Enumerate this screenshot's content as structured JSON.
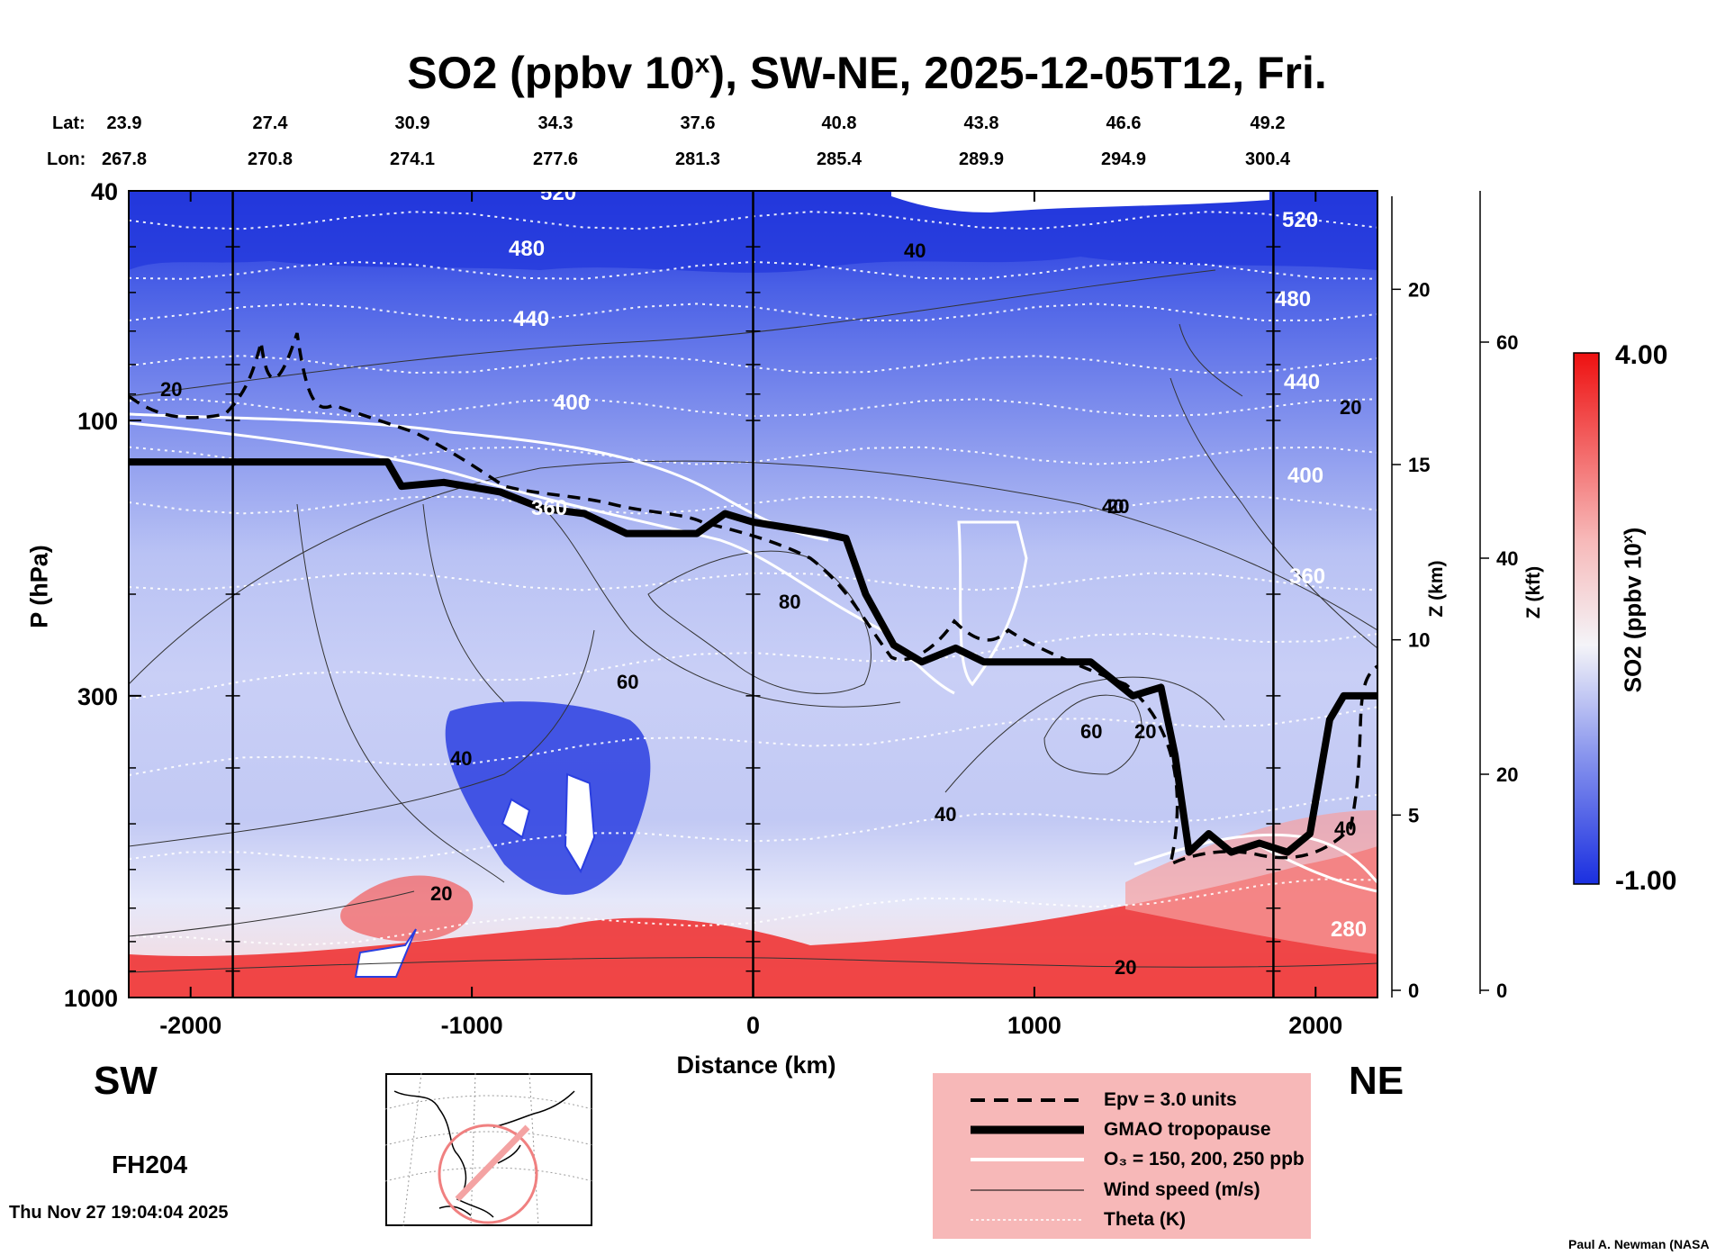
{
  "title": {
    "text": "SO2 (ppbv 10",
    "sup": "x",
    "rest": "), SW-NE, 2025-12-05T12, Fri."
  },
  "lat_label": "Lat:",
  "lon_label": "Lon:",
  "lats": [
    "23.9",
    "27.4",
    "30.9",
    "34.3",
    "37.6",
    "40.8",
    "43.8",
    "46.6",
    "49.2"
  ],
  "lons": [
    "267.8",
    "270.8",
    "274.1",
    "277.6",
    "281.3",
    "285.4",
    "289.9",
    "294.9",
    "300.4"
  ],
  "y_label": "P (hPa)",
  "x_label": "Distance (km)",
  "z_km_label": "Z (km)",
  "z_kft_label": "Z (kft)",
  "sw_label": "SW",
  "ne_label": "NE",
  "forecast_hour": "FH204",
  "footer_time": "Thu Nov 27 19:04:04 2025",
  "credit": "Paul A. Newman (NASA",
  "colorbar": {
    "title": "SO2 (ppbv 10",
    "title_sup": "x",
    "max_label": "4.00",
    "min_label": "-1.00",
    "min_color": "#1a2fe0",
    "mid_color": "#f4f4f8",
    "max_color": "#ee1111"
  },
  "legend": {
    "epv": "Epv = 3.0 units",
    "tropopause": "GMAO tropopause",
    "ozone": "O₃ = 150, 200, 250 ppb",
    "wind": "Wind speed (m/s)",
    "theta": "Theta (K)"
  },
  "chart_data": {
    "type": "heatmap",
    "title": "SO2 (ppbv 10^x), SW-NE, 2025-12-05T12, Fri.",
    "xlabel": "Distance (km)",
    "ylabel": "P (hPa)",
    "xlim": [
      -2220,
      2220
    ],
    "ylim": [
      1000,
      40
    ],
    "x_ticks": [
      -2000,
      -1000,
      0,
      1000,
      2000
    ],
    "x_tick_labels": [
      "-2000",
      "-1000",
      "0",
      "1000",
      "2000"
    ],
    "y_ticks": [
      1000,
      300,
      100,
      40
    ],
    "y_tick_labels": [
      "1000",
      "300",
      "100",
      "40"
    ],
    "z_km_ticks": [
      0,
      5,
      10,
      15,
      20
    ],
    "z_km_tick_labels": [
      "0",
      "5",
      "10",
      "15",
      "20"
    ],
    "z_kft_ticks": [
      0,
      20,
      40,
      60
    ],
    "z_kft_tick_labels": [
      "0",
      "20",
      "40",
      "60"
    ],
    "section_lines_km": [
      -1850,
      0,
      1850
    ],
    "colorbar_range": [
      -1.0,
      4.0
    ],
    "tropopause_hpa": [
      [
        -2220,
        118
      ],
      [
        -1300,
        118
      ],
      [
        -1250,
        130
      ],
      [
        -1100,
        128
      ],
      [
        -900,
        133
      ],
      [
        -750,
        142
      ],
      [
        -600,
        145
      ],
      [
        -450,
        157
      ],
      [
        -200,
        157
      ],
      [
        -100,
        145
      ],
      [
        0,
        150
      ],
      [
        250,
        157
      ],
      [
        330,
        160
      ],
      [
        400,
        200
      ],
      [
        500,
        245
      ],
      [
        600,
        262
      ],
      [
        720,
        248
      ],
      [
        820,
        262
      ],
      [
        1200,
        262
      ],
      [
        1350,
        300
      ],
      [
        1450,
        290
      ],
      [
        1500,
        380
      ],
      [
        1550,
        560
      ],
      [
        1620,
        520
      ],
      [
        1700,
        560
      ],
      [
        1800,
        540
      ],
      [
        1900,
        560
      ],
      [
        1980,
        520
      ],
      [
        2050,
        330
      ],
      [
        2100,
        300
      ],
      [
        2220,
        300
      ]
    ],
    "wind_contour_labels": [
      "20",
      "20",
      "40",
      "40",
      "40",
      "40",
      "60",
      "60",
      "80",
      "20",
      "20",
      "20",
      "20",
      "40"
    ],
    "theta_labels": [
      "520",
      "480",
      "440",
      "400",
      "360",
      "520",
      "480",
      "440",
      "400",
      "360",
      "280"
    ]
  }
}
